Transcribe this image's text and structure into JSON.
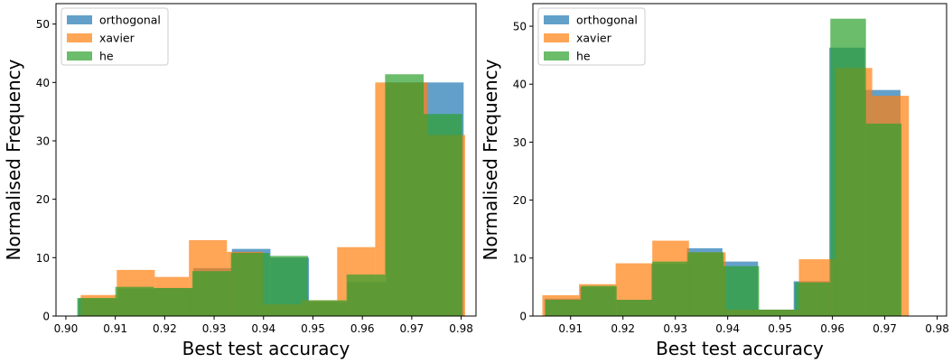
{
  "chart_data": [
    {
      "type": "histogram",
      "xlabel": "Best test accuracy",
      "ylabel": "Normalised Frequency",
      "xlim": [
        0.898,
        0.983
      ],
      "ylim": [
        0,
        53.5
      ],
      "xticks": [
        "0.90",
        "0.91",
        "0.92",
        "0.93",
        "0.94",
        "0.95",
        "0.96",
        "0.97",
        "0.98"
      ],
      "yticks": [
        "0",
        "10",
        "20",
        "30",
        "40",
        "50"
      ],
      "grid": false,
      "legend_position": "top-left",
      "series": [
        {
          "name": "orthogonal",
          "color": "#1f77b4",
          "bins": [
            {
              "x0": 0.9025,
              "x1": 0.9105,
              "value": 3.0
            },
            {
              "x0": 0.9105,
              "x1": 0.918,
              "value": 4.7
            },
            {
              "x0": 0.918,
              "x1": 0.9258,
              "value": 4.8
            },
            {
              "x0": 0.9258,
              "x1": 0.9336,
              "value": 8.2
            },
            {
              "x0": 0.9336,
              "x1": 0.9414,
              "value": 11.5
            },
            {
              "x0": 0.9414,
              "x1": 0.9492,
              "value": 10.0
            },
            {
              "x0": 0.9492,
              "x1": 0.957,
              "value": 2.4
            },
            {
              "x0": 0.957,
              "x1": 0.9648,
              "value": 5.8
            },
            {
              "x0": 0.9648,
              "x1": 0.9727,
              "value": 40.0
            },
            {
              "x0": 0.9727,
              "x1": 0.9805,
              "value": 40.0
            }
          ]
        },
        {
          "name": "xavier",
          "color": "#ff7f0e",
          "bins": [
            {
              "x0": 0.903,
              "x1": 0.9103,
              "value": 3.6
            },
            {
              "x0": 0.9103,
              "x1": 0.918,
              "value": 7.9
            },
            {
              "x0": 0.918,
              "x1": 0.9249,
              "value": 6.7
            },
            {
              "x0": 0.9249,
              "x1": 0.9326,
              "value": 13.0
            },
            {
              "x0": 0.9326,
              "x1": 0.9399,
              "value": 11.0
            },
            {
              "x0": 0.9399,
              "x1": 0.9476,
              "value": 2.0
            },
            {
              "x0": 0.9476,
              "x1": 0.9549,
              "value": 2.7
            },
            {
              "x0": 0.9549,
              "x1": 0.9626,
              "value": 11.8
            },
            {
              "x0": 0.9626,
              "x1": 0.9733,
              "value": 40.0
            },
            {
              "x0": 0.9733,
              "x1": 0.9808,
              "value": 31.0
            }
          ]
        },
        {
          "name": "he",
          "color": "#2ca02c",
          "bins": [
            {
              "x0": 0.9023,
              "x1": 0.91,
              "value": 3.1
            },
            {
              "x0": 0.91,
              "x1": 0.9178,
              "value": 5.0
            },
            {
              "x0": 0.9178,
              "x1": 0.9256,
              "value": 4.8
            },
            {
              "x0": 0.9256,
              "x1": 0.9334,
              "value": 7.7
            },
            {
              "x0": 0.9334,
              "x1": 0.9412,
              "value": 10.8
            },
            {
              "x0": 0.9412,
              "x1": 0.949,
              "value": 10.3
            },
            {
              "x0": 0.949,
              "x1": 0.9568,
              "value": 2.7
            },
            {
              "x0": 0.9568,
              "x1": 0.9646,
              "value": 7.1
            },
            {
              "x0": 0.9646,
              "x1": 0.9724,
              "value": 41.4
            },
            {
              "x0": 0.9724,
              "x1": 0.9802,
              "value": 34.6
            }
          ]
        }
      ]
    },
    {
      "type": "histogram",
      "xlabel": "Best test accuracy",
      "ylabel": "Normalised Frequency",
      "xlim": [
        0.9028,
        0.9818
      ],
      "ylim": [
        0,
        53.9
      ],
      "xticks": [
        "0.91",
        "0.92",
        "0.93",
        "0.94",
        "0.95",
        "0.96",
        "0.97",
        "0.98"
      ],
      "yticks": [
        "0",
        "10",
        "20",
        "30",
        "40",
        "50"
      ],
      "grid": false,
      "legend_position": "top-left",
      "series": [
        {
          "name": "orthogonal",
          "color": "#1f77b4",
          "bins": [
            {
              "x0": 0.905,
              "x1": 0.9118,
              "value": 3.0
            },
            {
              "x0": 0.9118,
              "x1": 0.9186,
              "value": 5.0
            },
            {
              "x0": 0.9186,
              "x1": 0.9254,
              "value": 2.8
            },
            {
              "x0": 0.9254,
              "x1": 0.9322,
              "value": 9.0
            },
            {
              "x0": 0.9322,
              "x1": 0.939,
              "value": 11.7
            },
            {
              "x0": 0.939,
              "x1": 0.9458,
              "value": 9.4
            },
            {
              "x0": 0.9458,
              "x1": 0.9526,
              "value": 1.1
            },
            {
              "x0": 0.9526,
              "x1": 0.9594,
              "value": 6.0
            },
            {
              "x0": 0.9594,
              "x1": 0.9662,
              "value": 46.3
            },
            {
              "x0": 0.9662,
              "x1": 0.973,
              "value": 39.0
            }
          ]
        },
        {
          "name": "xavier",
          "color": "#ff7f0e",
          "bins": [
            {
              "x0": 0.9046,
              "x1": 0.9116,
              "value": 3.6
            },
            {
              "x0": 0.9116,
              "x1": 0.9186,
              "value": 5.5
            },
            {
              "x0": 0.9186,
              "x1": 0.9256,
              "value": 9.1
            },
            {
              "x0": 0.9256,
              "x1": 0.9326,
              "value": 13.0
            },
            {
              "x0": 0.9326,
              "x1": 0.9396,
              "value": 11.0
            },
            {
              "x0": 0.9396,
              "x1": 0.9466,
              "value": 1.1
            },
            {
              "x0": 0.9466,
              "x1": 0.9536,
              "value": 1.1
            },
            {
              "x0": 0.9536,
              "x1": 0.9606,
              "value": 9.8
            },
            {
              "x0": 0.9606,
              "x1": 0.9676,
              "value": 42.8
            },
            {
              "x0": 0.9676,
              "x1": 0.9746,
              "value": 38.0
            }
          ]
        },
        {
          "name": "he",
          "color": "#2ca02c",
          "bins": [
            {
              "x0": 0.9052,
              "x1": 0.912,
              "value": 2.8
            },
            {
              "x0": 0.912,
              "x1": 0.9188,
              "value": 5.2
            },
            {
              "x0": 0.9188,
              "x1": 0.9256,
              "value": 2.8
            },
            {
              "x0": 0.9256,
              "x1": 0.9324,
              "value": 9.4
            },
            {
              "x0": 0.9324,
              "x1": 0.9392,
              "value": 11.0
            },
            {
              "x0": 0.9392,
              "x1": 0.946,
              "value": 8.6
            },
            {
              "x0": 0.946,
              "x1": 0.9528,
              "value": 1.1
            },
            {
              "x0": 0.9528,
              "x1": 0.9596,
              "value": 5.8
            },
            {
              "x0": 0.9596,
              "x1": 0.9664,
              "value": 51.3
            },
            {
              "x0": 0.9664,
              "x1": 0.9732,
              "value": 33.2
            }
          ]
        }
      ]
    }
  ]
}
